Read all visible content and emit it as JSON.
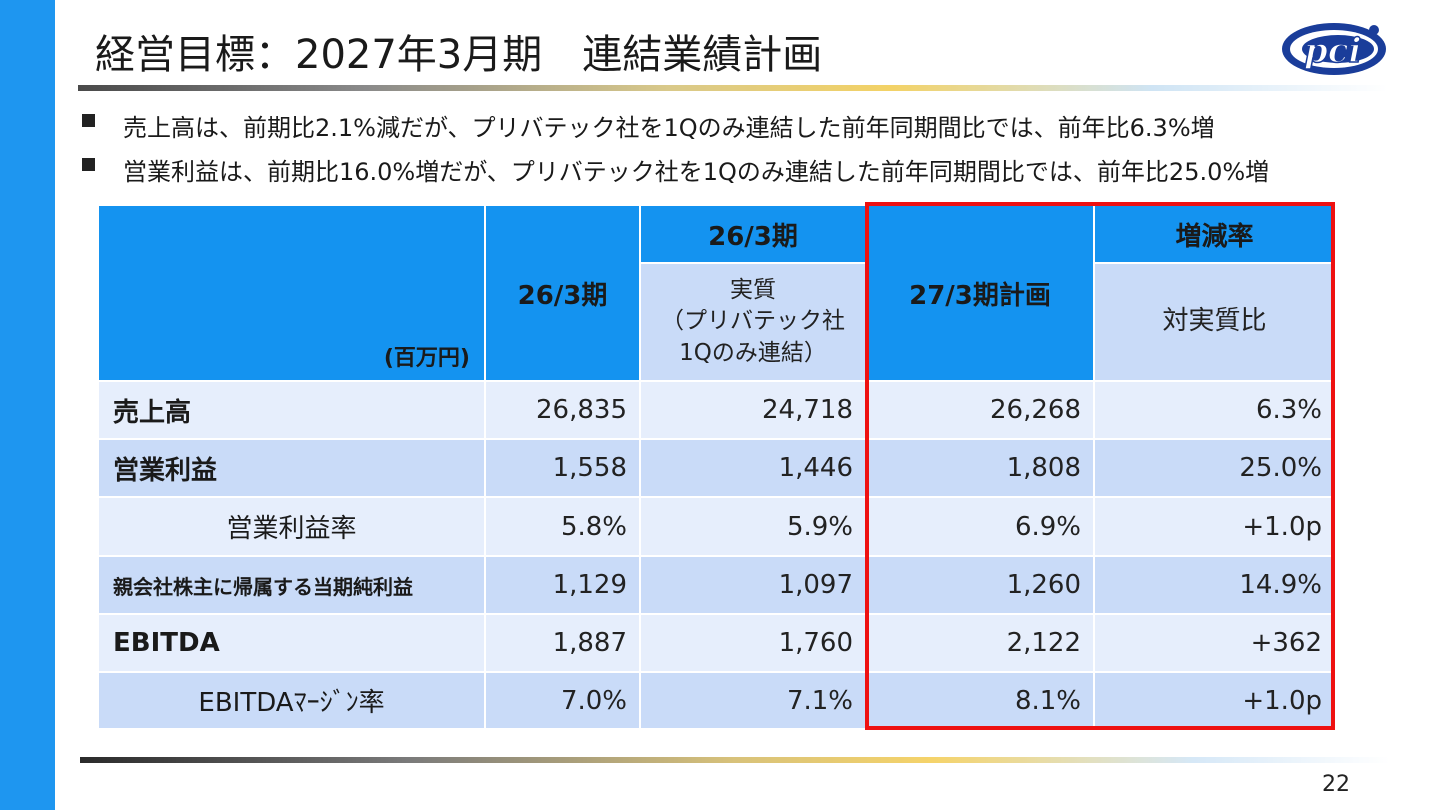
{
  "slide": {
    "title": "経営目標：2027年3月期　連結業績計画",
    "page_number": "22",
    "logo_text": "pci"
  },
  "bullets": [
    "売上高は、前期比2.1%減だが、プリバテック社を1Qのみ連結した前年同期間比では、前年比6.3%増",
    "営業利益は、前期比16.0%増だが、プリバテック社を1Qのみ連結した前年同期間比では、前年比25.0%増"
  ],
  "table": {
    "unit_label": "(百万円)",
    "col_2603": "26/3期",
    "col_2603_group": "26/3期",
    "col_real": "実質\n（プリバテック社\n1Qのみ連結）",
    "col_plan": "27/3期計画",
    "col_change_group": "増減率",
    "col_change": "対実質比",
    "rows": [
      {
        "label": "売上高",
        "v1": "26,835",
        "v2": "24,718",
        "v3": "26,268",
        "v4": "6.3%"
      },
      {
        "label": "営業利益",
        "v1": "1,558",
        "v2": "1,446",
        "v3": "1,808",
        "v4": "25.0%"
      },
      {
        "label": "営業利益率",
        "v1": "5.8%",
        "v2": "5.9%",
        "v3": "6.9%",
        "v4": "+1.0p"
      },
      {
        "label": "親会社株主に帰属する当期純利益",
        "v1": "1,129",
        "v2": "1,097",
        "v3": "1,260",
        "v4": "14.9%"
      },
      {
        "label": "EBITDA",
        "v1": "1,887",
        "v2": "1,760",
        "v3": "2,122",
        "v4": "+362"
      },
      {
        "label": "EBITDAﾏｰｼﾞﾝ率",
        "v1": "7.0%",
        "v2": "7.1%",
        "v3": "8.1%",
        "v4": "+1.0p"
      }
    ]
  },
  "colors": {
    "accent_blue": "#1493f0",
    "row_light": "#e6eefc",
    "row_mid": "#c9dbf8",
    "highlight_red": "#ee1111"
  }
}
